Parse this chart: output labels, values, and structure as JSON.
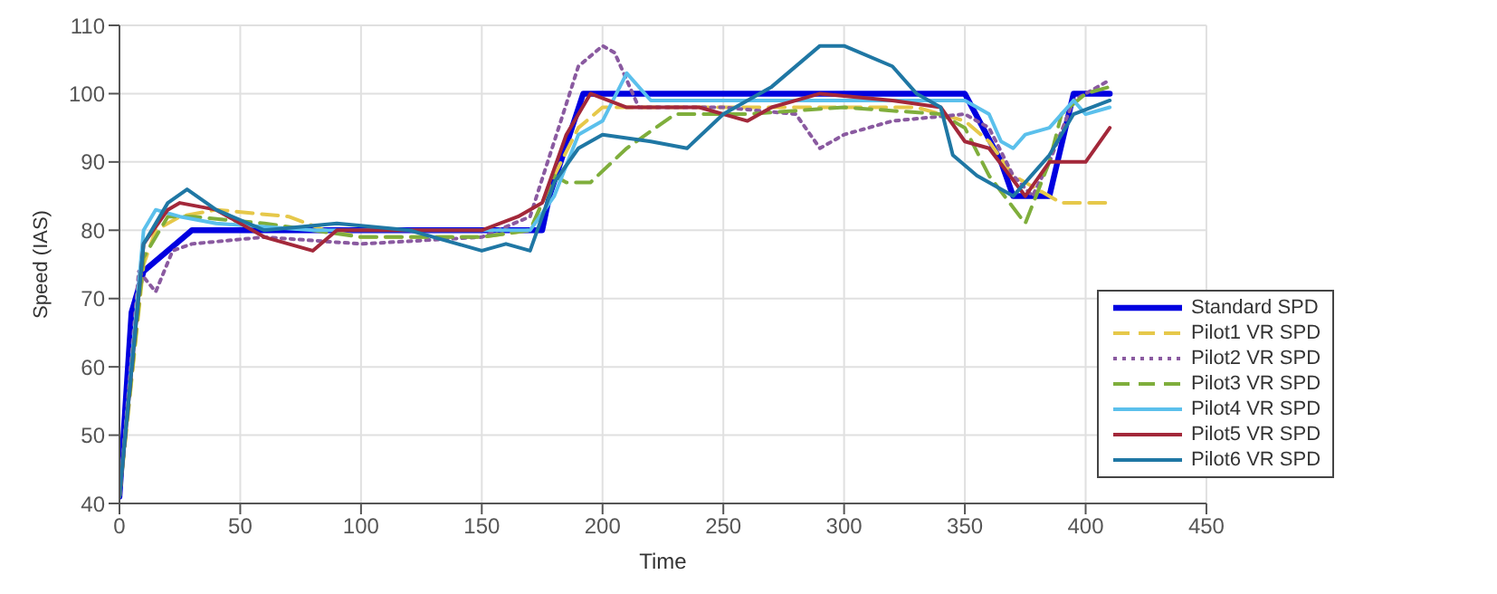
{
  "chart_data": {
    "type": "line",
    "xlabel": "Time",
    "ylabel": "Speed (IAS)",
    "xlim": [
      0,
      450
    ],
    "xticks": [
      0,
      50,
      100,
      150,
      200,
      250,
      300,
      350,
      400,
      450
    ],
    "ylim": [
      40,
      110
    ],
    "yticks": [
      40,
      50,
      60,
      70,
      80,
      90,
      100,
      110
    ],
    "grid": true,
    "legend": "bottom right",
    "marker": "none",
    "series": [
      {
        "name": "Standard SPD",
        "color": "#0000e0",
        "line_style": "solid",
        "x": [
          0,
          5,
          10,
          20,
          30,
          175,
          178,
          192,
          350,
          365,
          370,
          385,
          395,
          410
        ],
        "values": [
          41,
          68,
          74,
          77,
          80,
          80,
          85,
          100,
          100,
          90,
          85,
          85,
          100,
          100
        ]
      },
      {
        "name": "Pilot1 VR SPD",
        "color": "#e6c84a",
        "line_style": "dashed",
        "x": [
          0,
          10,
          15,
          25,
          40,
          70,
          85,
          100,
          150,
          170,
          180,
          190,
          200,
          250,
          300,
          330,
          350,
          360,
          370,
          380,
          390,
          410
        ],
        "values": [
          41,
          75,
          80,
          82,
          83,
          82,
          80,
          79,
          79,
          80,
          88,
          95,
          98,
          98,
          98,
          98,
          96,
          93,
          88,
          86,
          84,
          84
        ]
      },
      {
        "name": "Pilot2 VR SPD",
        "color": "#8a5aa0",
        "line_style": "dotted",
        "x": [
          0,
          8,
          15,
          22,
          30,
          60,
          100,
          150,
          170,
          180,
          190,
          200,
          205,
          215,
          250,
          280,
          290,
          300,
          320,
          350,
          360,
          370,
          378,
          385,
          395,
          410
        ],
        "values": [
          41,
          74,
          71,
          77,
          78,
          79,
          78,
          79,
          82,
          93,
          104,
          107,
          106,
          98,
          98,
          97,
          92,
          94,
          96,
          97,
          95,
          88,
          85,
          90,
          99,
          102
        ]
      },
      {
        "name": "Pilot3 VR SPD",
        "color": "#7fae3c",
        "line_style": "dashed",
        "x": [
          0,
          10,
          20,
          30,
          60,
          100,
          150,
          170,
          180,
          185,
          195,
          210,
          230,
          260,
          300,
          340,
          350,
          360,
          375,
          385,
          390,
          400,
          410
        ],
        "values": [
          41,
          76,
          82,
          82,
          81,
          79,
          79,
          80,
          88,
          87,
          87,
          92,
          97,
          97,
          98,
          97,
          95,
          88,
          81,
          90,
          97,
          100,
          101
        ]
      },
      {
        "name": "Pilot4 VR SPD",
        "color": "#5bc0ec",
        "line_style": "solid",
        "x": [
          0,
          10,
          15,
          25,
          40,
          80,
          150,
          170,
          180,
          190,
          200,
          210,
          220,
          250,
          300,
          350,
          360,
          365,
          370,
          375,
          385,
          395,
          400,
          410
        ],
        "values": [
          41,
          80,
          83,
          82,
          81,
          80,
          80,
          80,
          85,
          94,
          96,
          103,
          99,
          99,
          99,
          99,
          97,
          93,
          92,
          94,
          95,
          99,
          97,
          98
        ]
      },
      {
        "name": "Pilot5 VR SPD",
        "color": "#a3283a",
        "line_style": "solid",
        "x": [
          0,
          10,
          20,
          25,
          40,
          60,
          80,
          90,
          150,
          165,
          175,
          185,
          195,
          210,
          240,
          260,
          270,
          290,
          320,
          340,
          350,
          360,
          375,
          385,
          400,
          410
        ],
        "values": [
          41,
          78,
          83,
          84,
          83,
          79,
          77,
          80,
          80,
          82,
          84,
          94,
          100,
          98,
          98,
          96,
          98,
          100,
          99,
          98,
          93,
          92,
          85,
          90,
          90,
          95
        ]
      },
      {
        "name": "Pilot6 VR SPD",
        "color": "#1f77a4",
        "line_style": "solid",
        "x": [
          0,
          10,
          20,
          28,
          40,
          60,
          90,
          120,
          140,
          150,
          160,
          170,
          180,
          190,
          200,
          220,
          235,
          250,
          270,
          290,
          300,
          320,
          330,
          340,
          345,
          355,
          370,
          385,
          395,
          410
        ],
        "values": [
          41,
          78,
          84,
          86,
          83,
          80,
          81,
          80,
          78,
          77,
          78,
          77,
          87,
          92,
          94,
          93,
          92,
          97,
          101,
          107,
          107,
          104,
          100,
          98,
          91,
          88,
          85,
          91,
          97,
          99
        ]
      }
    ]
  }
}
